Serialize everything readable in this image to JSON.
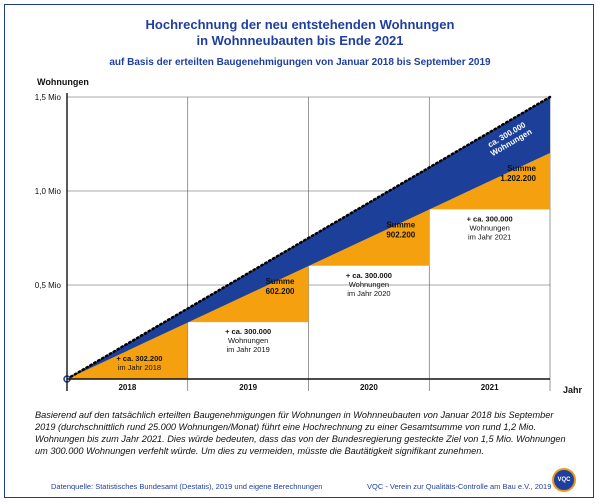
{
  "header": {
    "title_line1": "Hochrechnung der neu entstehenden Wohnungen",
    "title_line2": "in Wohnneubauten bis Ende 2021",
    "subtitle": "auf Basis der erteilten Baugenehmigungen von Januar 2018 bis September 2019"
  },
  "chart_data": {
    "type": "area",
    "ylabel": "Wohnungen",
    "xlabel": "Jahr",
    "ylim": [
      0,
      1500000
    ],
    "yticks": [
      "0,5 Mio",
      "1,0 Mio",
      "1,5 Mio"
    ],
    "yticks_values": [
      500000,
      1000000,
      1500000
    ],
    "categories": [
      "2018",
      "2019",
      "2020",
      "2021"
    ],
    "grid": true,
    "series": [
      {
        "name": "Summe",
        "values": [
          302200,
          602200,
          902200,
          1202200
        ]
      }
    ],
    "band_label": {
      "line1": "ca. 300.000",
      "line2": "Wohnungen"
    },
    "trend_end_value": 1500000,
    "annotations": [
      {
        "line1": "+ ca. 302.200",
        "line2": "im Jahr 2018"
      },
      {
        "line1": "+ ca. 300.000",
        "line2": "Wohnungen",
        "line3": "im Jahr 2019"
      },
      {
        "line1": "+ ca. 300.000",
        "line2": "Wohnungen",
        "line3": "im Jahr 2020"
      },
      {
        "line1": "+ ca. 300.000",
        "line2": "Wohnungen",
        "line3": "im Jahr 2021"
      }
    ],
    "summe_labels": [
      {
        "line1": "Summe",
        "line2": "602.200"
      },
      {
        "line1": "Summe",
        "line2": "902.200"
      },
      {
        "line1": "Summe",
        "line2": "1.202.200"
      }
    ],
    "colors": {
      "bars": "#f5a10f",
      "band": "#1c3f9a",
      "axis": "#111111",
      "grid": "#555555"
    }
  },
  "description": "Basierend auf den tatsächlich erteilten Baugenehmigungen für Wohnungen in Wohnneubauten von Januar 2018 bis September 2019 (durchschnittlich rund 25.000 Wohnungen/Monat) führt eine Hochrechnung zu einer Gesamtsumme von rund 1,2 Mio. Wohnungen bis zum Jahr 2021. Dies würde bedeuten, dass das von der Bundesregierung gesteckte Ziel von 1,5 Mio. Wohnungen um 300.000 Wohnungen verfehlt würde. Um dies zu vermeiden, müsste die Bautätigkeit signifikant zunehmen.",
  "footer": {
    "source": "Datenquelle: Statistisches Bundesamt (Destatis), 2019 und eigene Berechnungen",
    "credit": "VQC - Verein zur Qualitäts-Controlle am Bau e.V., 2019",
    "logo_text": "VQC"
  }
}
